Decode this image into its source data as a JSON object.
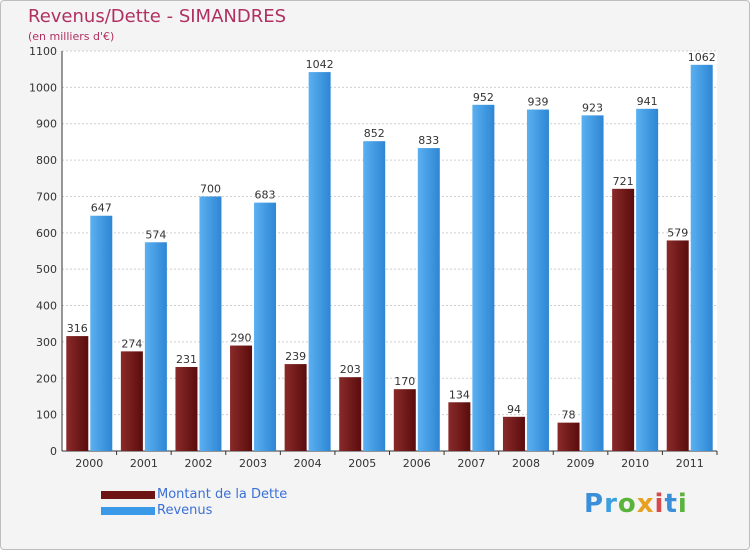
{
  "title": "Revenus/Dette - SIMANDRES",
  "subtitle": "(en milliers d'€)",
  "logo_text": "Proxiti",
  "colors": {
    "dette": "#6e1414",
    "revenus": "#3a9ae8",
    "title": "#b03060",
    "legend_text": "#3a70d8"
  },
  "chart_data": {
    "type": "bar",
    "title": "Revenus/Dette - SIMANDRES",
    "ylabel": "(en milliers d'€)",
    "categories": [
      "2000",
      "2001",
      "2002",
      "2003",
      "2004",
      "2005",
      "2006",
      "2007",
      "2008",
      "2009",
      "2010",
      "2011"
    ],
    "series": [
      {
        "name": "Montant de la Dette",
        "values": [
          316,
          274,
          231,
          290,
          239,
          203,
          170,
          134,
          94,
          78,
          721,
          579
        ]
      },
      {
        "name": "Revenus",
        "values": [
          647,
          574,
          700,
          683,
          1042,
          852,
          833,
          952,
          939,
          923,
          941,
          1062
        ]
      }
    ],
    "ylim": [
      0,
      1100
    ],
    "yticks": [
      0,
      100,
      200,
      300,
      400,
      500,
      600,
      700,
      800,
      900,
      1000,
      1100
    ],
    "grid": true,
    "legend_position": "bottom-left"
  }
}
